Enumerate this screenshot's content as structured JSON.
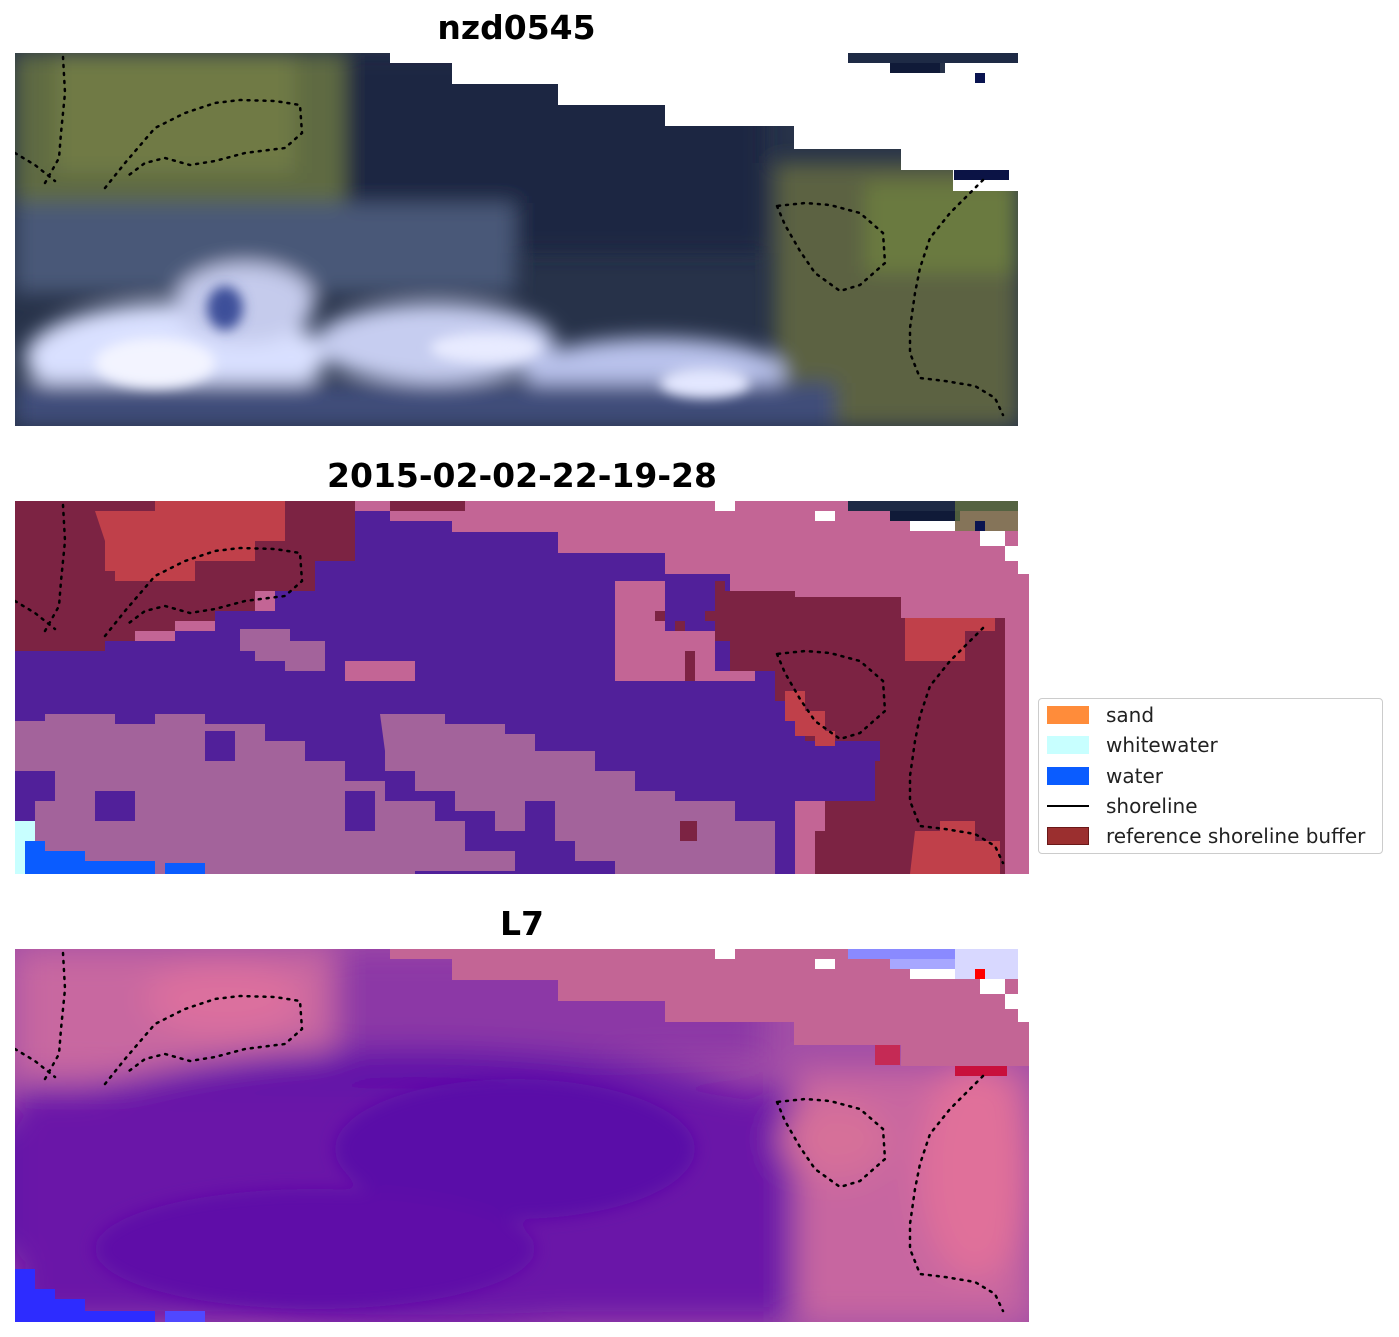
{
  "panels": [
    {
      "title": "nzd0545"
    },
    {
      "title": "2015-02-02-22-19-28"
    },
    {
      "title": "L7"
    }
  ],
  "legend": {
    "items": [
      {
        "label": "sand",
        "color": "#ff8c3a",
        "kind": "patch"
      },
      {
        "label": "whitewater",
        "color": "#c8ffff",
        "kind": "patch"
      },
      {
        "label": "water",
        "color": "#0a5cff",
        "kind": "patch"
      },
      {
        "label": "shoreline",
        "color": "#000000",
        "kind": "line"
      },
      {
        "label": "reference shoreline buffer",
        "color": "#9b2f2f",
        "kind": "patch"
      }
    ]
  },
  "colors": {
    "no_data": "#ffffff",
    "rgb_land": "#6f7a45",
    "rgb_dark_water": "#1e2a45",
    "rgb_cloud": "#dfe4ff",
    "class_water_overlay": "#51209a",
    "class_nodata_overlay": "#c36595",
    "class_buffer": "#7c2343",
    "class_buffer_red": "#c0404a",
    "index_low": "#5a0aa8",
    "index_mid": "#9b3fa8",
    "index_high": "#d66a9a"
  }
}
